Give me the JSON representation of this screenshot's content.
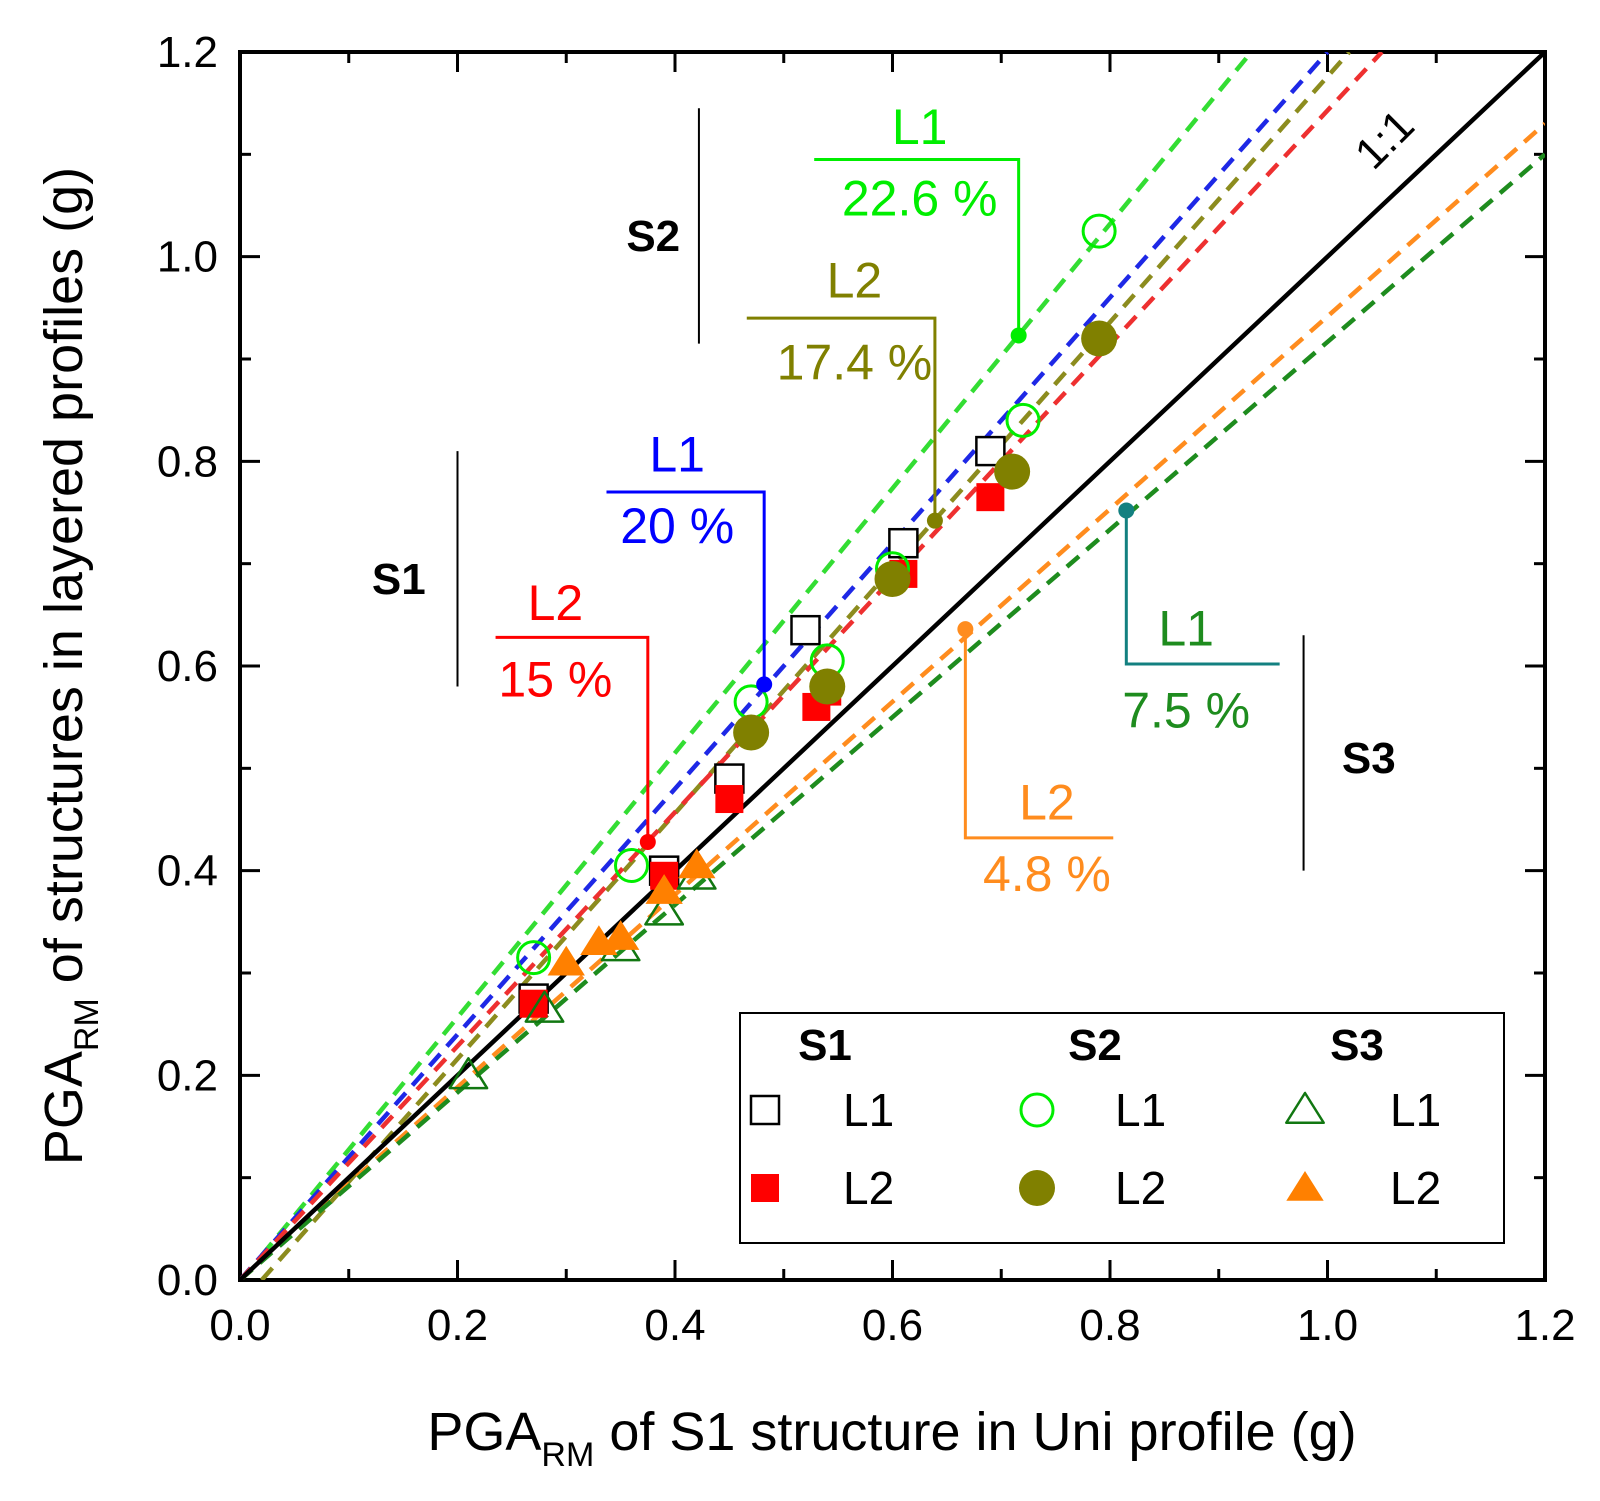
{
  "chart_data": {
    "type": "scatter",
    "xlabel": {
      "main": "PGA",
      "sub": "RM",
      "rest": " of S1 structure in Uni profile (g)"
    },
    "ylabel": {
      "main": "PGA",
      "sub": "RM",
      "rest": " of structures in layered profiles (g)"
    },
    "xlim": [
      0,
      1.2
    ],
    "ylim": [
      0,
      1.2
    ],
    "xticks": [
      0.0,
      0.2,
      0.4,
      0.6,
      0.8,
      1.0,
      1.2
    ],
    "yticks": [
      0.0,
      0.2,
      0.4,
      0.6,
      0.8,
      1.0,
      1.2
    ],
    "xtick_labels": [
      "0.0",
      "0.2",
      "0.4",
      "0.6",
      "0.8",
      "1.0",
      "1.2"
    ],
    "ytick_labels": [
      "0.0",
      "0.2",
      "0.4",
      "0.6",
      "0.8",
      "1.0",
      "1.2"
    ],
    "identity_label": "1:1",
    "series": [
      {
        "name": "S1 L1",
        "structure": "S1",
        "layer": "L1",
        "marker": "square-open",
        "color": "#000000",
        "x": [
          0.27,
          0.39,
          0.45,
          0.52,
          0.61,
          0.69
        ],
        "y": [
          0.275,
          0.4,
          0.49,
          0.635,
          0.72,
          0.81
        ]
      },
      {
        "name": "S1 L2",
        "structure": "S1",
        "layer": "L2",
        "marker": "square-filled",
        "color": "#ff0000",
        "x": [
          0.27,
          0.39,
          0.45,
          0.53,
          0.54,
          0.61,
          0.69
        ],
        "y": [
          0.27,
          0.395,
          0.47,
          0.56,
          0.575,
          0.69,
          0.765
        ]
      },
      {
        "name": "S2 L1",
        "structure": "S2",
        "layer": "L1",
        "marker": "circle-open",
        "color": "#00ee00",
        "x": [
          0.27,
          0.36,
          0.47,
          0.54,
          0.6,
          0.72,
          0.79
        ],
        "y": [
          0.315,
          0.405,
          0.565,
          0.605,
          0.695,
          0.84,
          1.025
        ]
      },
      {
        "name": "S2 L2",
        "structure": "S2",
        "layer": "L2",
        "marker": "circle-filled",
        "color": "#808000",
        "x": [
          0.47,
          0.54,
          0.6,
          0.71,
          0.79
        ],
        "y": [
          0.535,
          0.58,
          0.685,
          0.79,
          0.92
        ]
      },
      {
        "name": "S3 L1",
        "structure": "S3",
        "layer": "L1",
        "marker": "triangle-open",
        "color": "#117711",
        "x": [
          0.21,
          0.28,
          0.35,
          0.39,
          0.42
        ],
        "y": [
          0.2,
          0.265,
          0.325,
          0.36,
          0.395
        ]
      },
      {
        "name": "S3 L2",
        "structure": "S3",
        "layer": "L2",
        "marker": "triangle-filled",
        "color": "#ff8000",
        "x": [
          0.3,
          0.33,
          0.35,
          0.39,
          0.42
        ],
        "y": [
          0.31,
          0.33,
          0.335,
          0.38,
          0.405
        ]
      }
    ],
    "fit_lines": [
      {
        "name": "S2 L1 fit",
        "color": "#33dd33",
        "x": [
          0.02,
          0.93
        ],
        "y": [
          0.024,
          1.2
        ]
      },
      {
        "name": "S1 L1 fit",
        "color": "#1e28e6",
        "x": [
          0.0,
          1.0
        ],
        "y": [
          0.0,
          1.2
        ]
      },
      {
        "name": "S2 L2 fit",
        "color": "#8c8c1e",
        "x": [
          0.02,
          1.02
        ],
        "y": [
          0.0,
          1.2
        ]
      },
      {
        "name": "S1 L2 fit",
        "color": "#ee3030",
        "x": [
          0.0,
          1.05
        ],
        "y": [
          0.0,
          1.2
        ]
      },
      {
        "name": "S3 L2 fit",
        "color": "#ff8c1e",
        "x": [
          0.0,
          1.2
        ],
        "y": [
          0.0,
          1.13
        ]
      },
      {
        "name": "S3 L1 fit",
        "color": "#1e8c1e",
        "x": [
          0.0,
          1.2
        ],
        "y": [
          0.0,
          1.1
        ]
      }
    ],
    "annotations": [
      {
        "id": "s1-l2",
        "layer": "L2",
        "percent": "15 %",
        "color": "#ff0000",
        "point": [
          0.375,
          0.428
        ],
        "corner": [
          0.375,
          0.628
        ],
        "bar_start": 0.235,
        "label_x": 0.29,
        "label_top_y": 0.645,
        "label_bottom_y": 0.57
      },
      {
        "id": "s1-l1",
        "layer": "L1",
        "percent": "20 %",
        "color": "#0000ff",
        "point": [
          0.482,
          0.582
        ],
        "corner": [
          0.482,
          0.77
        ],
        "bar_start": 0.337,
        "label_x": 0.402,
        "label_top_y": 0.79,
        "label_bottom_y": 0.72
      },
      {
        "id": "s2-l2",
        "layer": "L2",
        "percent": "17.4 %",
        "color": "#808000",
        "point": [
          0.639,
          0.742
        ],
        "corner": [
          0.639,
          0.94
        ],
        "bar_start": 0.466,
        "label_x": 0.565,
        "label_top_y": 0.96,
        "label_bottom_y": 0.88
      },
      {
        "id": "s2-l1",
        "layer": "L1",
        "percent": "22.6 %",
        "color": "#00ee00",
        "point": [
          0.716,
          0.923
        ],
        "corner": [
          0.716,
          1.095
        ],
        "bar_start": 0.528,
        "label_x": 0.625,
        "label_top_y": 1.11,
        "label_bottom_y": 1.04
      },
      {
        "id": "s3-l2",
        "layer": "L2",
        "percent": "4.8 %",
        "color": "#ff8c1e",
        "point": [
          0.667,
          0.636
        ],
        "corner": [
          0.667,
          0.432
        ],
        "bar_start": 0.803,
        "label_x": 0.742,
        "label_top_y": 0.45,
        "label_bottom_y": 0.38
      },
      {
        "id": "s3-l1",
        "layer": "L1",
        "percent": "7.5 %",
        "color": "#1e8c1e",
        "line_color": "#138080",
        "point": [
          0.815,
          0.752
        ],
        "corner": [
          0.815,
          0.602
        ],
        "bar_start": 0.956,
        "label_x": 0.87,
        "label_top_y": 0.62,
        "label_bottom_y": 0.54
      }
    ],
    "group_labels": [
      {
        "text": "S2",
        "x": 0.38,
        "y": 1.02,
        "bracket_x": 0.422,
        "bracket_y": [
          0.915,
          1.145
        ]
      },
      {
        "text": "S1",
        "x": 0.146,
        "y": 0.685,
        "bracket_x": 0.2,
        "bracket_y": [
          0.58,
          0.81
        ]
      },
      {
        "text": "S3",
        "x": 1.038,
        "y": 0.51,
        "bracket_x": 0.978,
        "bracket_y": [
          0.4,
          0.63
        ]
      }
    ],
    "legend": {
      "position": "bottom-right",
      "columns": [
        {
          "heading": "S1",
          "items": [
            {
              "series": "S1 L1",
              "label": "L1"
            },
            {
              "series": "S1 L2",
              "label": "L2"
            }
          ]
        },
        {
          "heading": "S2",
          "items": [
            {
              "series": "S2 L1",
              "label": "L1"
            },
            {
              "series": "S2 L2",
              "label": "L2"
            }
          ]
        },
        {
          "heading": "S3",
          "items": [
            {
              "series": "S3 L1",
              "label": "L1"
            },
            {
              "series": "S3 L2",
              "label": "L2"
            }
          ]
        }
      ]
    }
  }
}
